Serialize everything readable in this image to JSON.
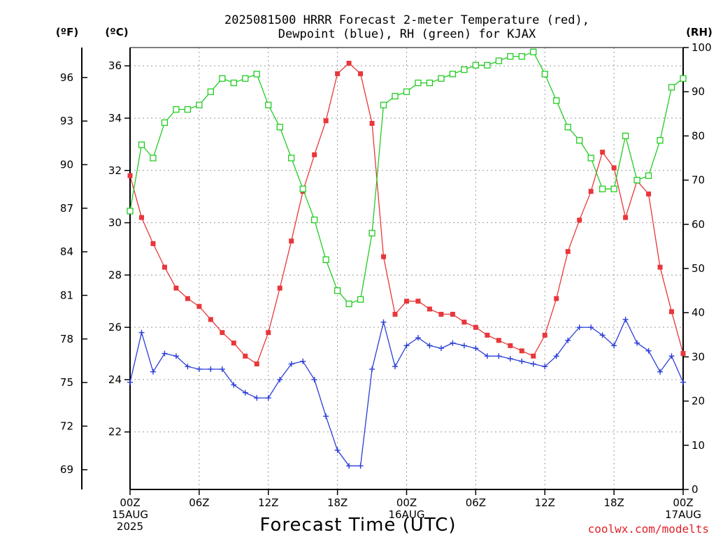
{
  "chart_data": {
    "type": "line",
    "title_line1": "2025081500 HRRR Forecast 2-meter Temperature (red),",
    "title_line2": "Dewpoint (blue), RH (green) for KJAX",
    "xlabel": "Forecast Time (UTC)",
    "credit": "coolwx.com/modelts",
    "units": {
      "f": "(ºF)",
      "c": "(ºC)",
      "rh": "(RH)"
    },
    "x_hours": [
      0,
      1,
      2,
      3,
      4,
      5,
      6,
      7,
      8,
      9,
      10,
      11,
      12,
      13,
      14,
      15,
      16,
      17,
      18,
      19,
      20,
      21,
      22,
      23,
      24,
      25,
      26,
      27,
      28,
      29,
      30,
      31,
      32,
      33,
      34,
      35,
      36,
      37,
      38,
      39,
      40,
      41,
      42,
      43,
      44,
      45,
      46,
      47,
      48
    ],
    "x_ticks": [
      {
        "hour": 0,
        "lines": [
          "00Z",
          "15AUG",
          "2025"
        ]
      },
      {
        "hour": 6,
        "lines": [
          "06Z"
        ]
      },
      {
        "hour": 12,
        "lines": [
          "12Z"
        ]
      },
      {
        "hour": 18,
        "lines": [
          "18Z"
        ]
      },
      {
        "hour": 24,
        "lines": [
          "00Z",
          "16AUG"
        ]
      },
      {
        "hour": 30,
        "lines": [
          "06Z"
        ]
      },
      {
        "hour": 36,
        "lines": [
          "12Z"
        ]
      },
      {
        "hour": 42,
        "lines": [
          "18Z"
        ]
      },
      {
        "hour": 48,
        "lines": [
          "00Z",
          "17AUG"
        ]
      }
    ],
    "xlim": [
      0,
      48
    ],
    "c_axis": {
      "ylim": [
        19.8,
        36.7
      ],
      "ticks": [
        22,
        24,
        26,
        28,
        30,
        32,
        34,
        36
      ]
    },
    "f_axis": {
      "ticks": [
        69,
        72,
        75,
        78,
        81,
        84,
        87,
        90,
        93,
        96
      ]
    },
    "rh_axis": {
      "ylim": [
        0,
        100
      ],
      "ticks": [
        0,
        10,
        20,
        30,
        40,
        50,
        60,
        70,
        80,
        90,
        100
      ]
    },
    "grid": true,
    "series": [
      {
        "key": "temperature",
        "axis": "c",
        "color": "#e8373a",
        "marker": "filled-square",
        "values": [
          31.8,
          30.2,
          29.2,
          28.3,
          27.5,
          27.1,
          26.8,
          26.3,
          25.8,
          25.4,
          24.9,
          24.6,
          25.8,
          27.5,
          29.3,
          31.2,
          32.6,
          33.9,
          35.7,
          36.1,
          35.7,
          33.8,
          28.7,
          26.5,
          27.0,
          27.0,
          26.7,
          26.5,
          26.5,
          26.2,
          26.0,
          25.7,
          25.5,
          25.3,
          25.1,
          24.9,
          25.7,
          27.1,
          28.9,
          30.1,
          31.2,
          32.7,
          32.1,
          30.2,
          31.6,
          31.1,
          28.3,
          26.6,
          25.0
        ]
      },
      {
        "key": "dewpoint",
        "axis": "c",
        "color": "#2a3ed6",
        "marker": "plus",
        "values": [
          23.9,
          25.8,
          24.3,
          25.0,
          24.9,
          24.5,
          24.4,
          24.4,
          24.4,
          23.8,
          23.5,
          23.3,
          23.3,
          24.0,
          24.6,
          24.7,
          24.0,
          22.6,
          21.3,
          20.7,
          20.7,
          24.4,
          26.2,
          24.5,
          25.3,
          25.6,
          25.3,
          25.2,
          25.4,
          25.3,
          25.2,
          24.9,
          24.9,
          24.8,
          24.7,
          24.6,
          24.5,
          24.9,
          25.5,
          26.0,
          26.0,
          25.7,
          25.3,
          26.3,
          25.4,
          25.1,
          24.3,
          24.9,
          23.9
        ]
      },
      {
        "key": "rh",
        "axis": "rh",
        "color": "#22cc22",
        "marker": "open-square",
        "values": [
          63,
          78,
          75,
          83,
          86,
          86,
          87,
          90,
          93,
          92,
          93,
          94,
          87,
          82,
          75,
          68,
          61,
          52,
          45,
          42,
          43,
          58,
          87,
          89,
          90,
          92,
          92,
          93,
          94,
          95,
          96,
          96,
          97,
          98,
          98,
          99,
          94,
          88,
          82,
          79,
          75,
          68,
          68,
          80,
          70,
          71,
          79,
          91,
          93
        ]
      }
    ]
  }
}
